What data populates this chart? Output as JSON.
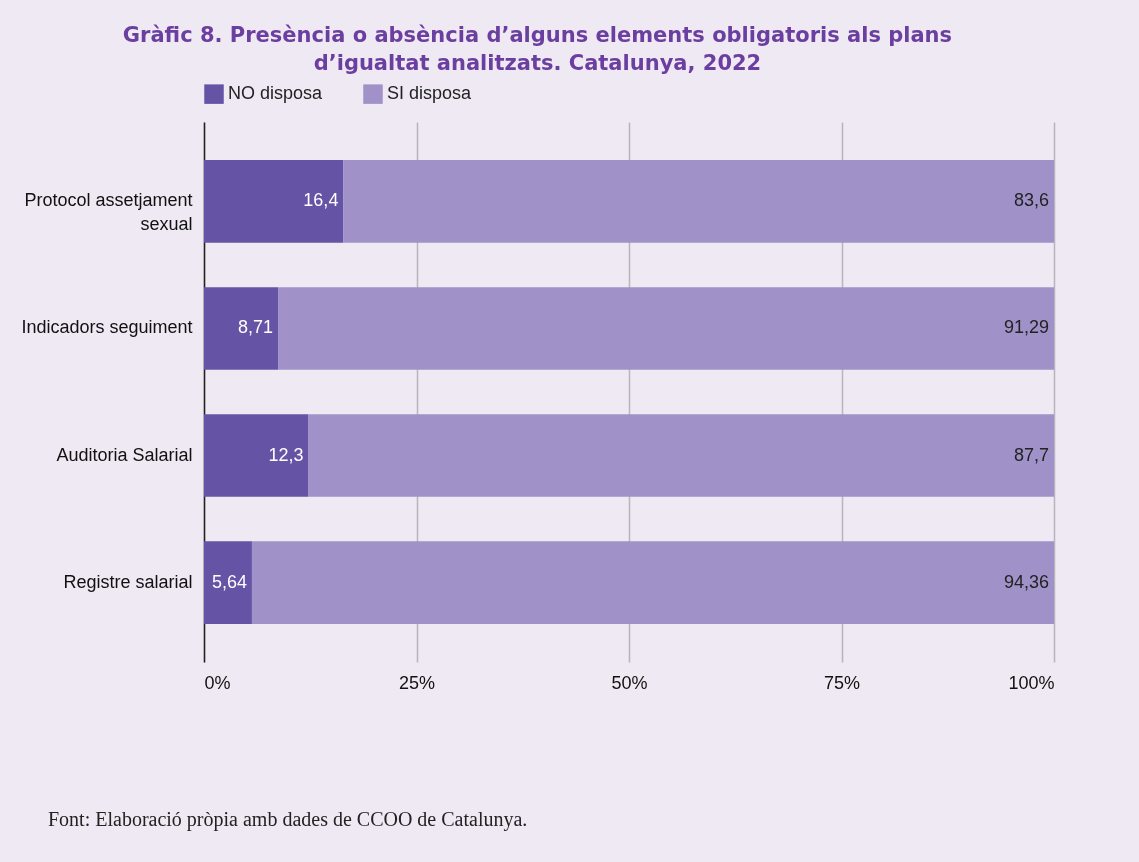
{
  "chart_data": {
    "type": "bar",
    "orientation": "horizontal",
    "stacked": true,
    "title": "Gràfic 8. Presència o absència d’alguns elements obligatoris als plans d’igualtat analitzats. Catalunya, 2022",
    "categories": [
      "Protocol assetjament sexual",
      "Indicadors seguiment",
      "Auditoria Salarial",
      "Registre salarial"
    ],
    "series": [
      {
        "name": "NO disposa",
        "color": "#6553a5",
        "values": [
          16.4,
          8.71,
          12.3,
          5.64
        ],
        "value_labels": [
          "16,4",
          "8,71",
          "12,3",
          "5,64"
        ]
      },
      {
        "name": "SI disposa",
        "color": "#a092c8",
        "values": [
          83.6,
          91.29,
          87.7,
          94.36
        ],
        "value_labels": [
          "83,6",
          "91,29",
          "87,7",
          "94,36"
        ]
      }
    ],
    "xlim": [
      0,
      100
    ],
    "xticks": [
      {
        "value": 0,
        "label": "0%"
      },
      {
        "value": 25,
        "label": "25%"
      },
      {
        "value": 50,
        "label": "50%"
      },
      {
        "value": 75,
        "label": "75%"
      },
      {
        "value": 100,
        "label": "100%"
      }
    ],
    "grid": "x",
    "legend": "top",
    "annotations": [
      "Font: Elaboració pròpia amb dades de CCOO de Catalunya."
    ]
  }
}
